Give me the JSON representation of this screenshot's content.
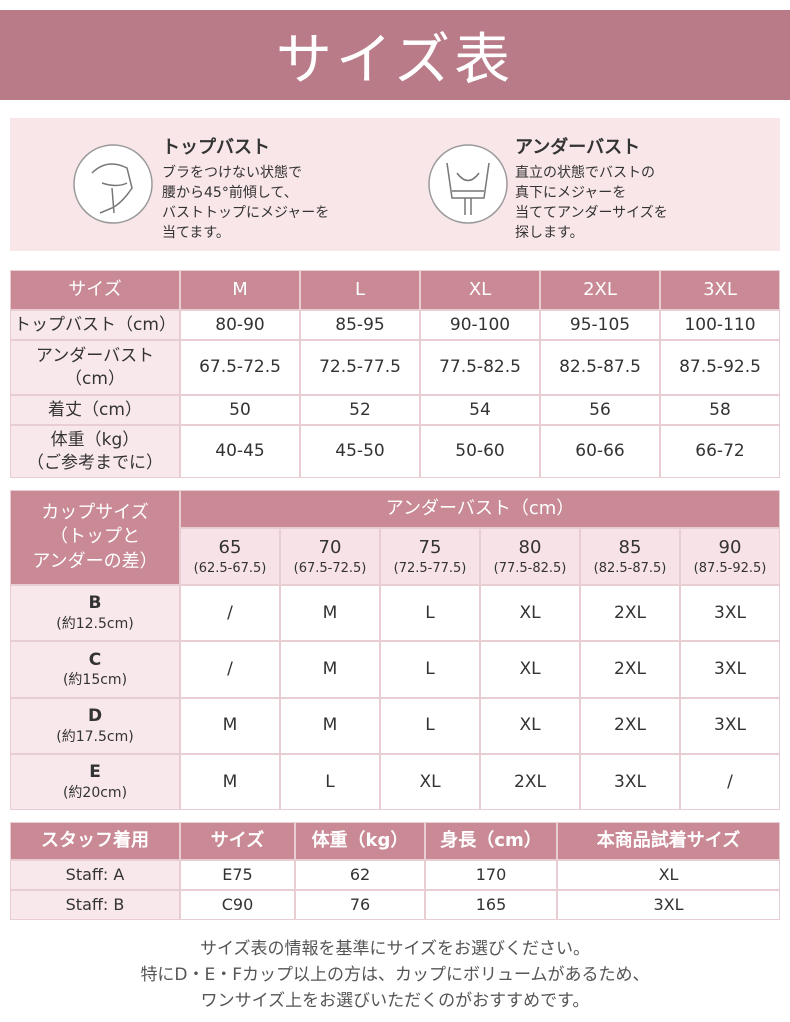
{
  "header": {
    "title": "サイズ表"
  },
  "guide": [
    {
      "title": "トップバスト",
      "lines": [
        "ブラをつけない状態で",
        "腰から45°前傾して、",
        "バストトップにメジャーを",
        "当てます。"
      ]
    },
    {
      "title": "アンダーバスト",
      "lines": [
        "直立の状態でバストの",
        "真下にメジャーを",
        "当ててアンダーサイズを",
        "探します。"
      ]
    }
  ],
  "size_table": {
    "header": [
      "サイズ",
      "M",
      "L",
      "XL",
      "2XL",
      "3XL"
    ],
    "rows": [
      {
        "label": [
          "トップバスト（cm）"
        ],
        "values": [
          "80-90",
          "85-95",
          "90-100",
          "95-105",
          "100-110"
        ]
      },
      {
        "label": [
          "アンダーバスト",
          "（cm）"
        ],
        "values": [
          "67.5-72.5",
          "72.5-77.5",
          "77.5-82.5",
          "82.5-87.5",
          "87.5-92.5"
        ]
      },
      {
        "label": [
          "着丈（cm）"
        ],
        "values": [
          "50",
          "52",
          "54",
          "56",
          "58"
        ]
      },
      {
        "label": [
          "体重（kg）",
          "（ご参考までに）"
        ],
        "values": [
          "40-45",
          "45-50",
          "50-60",
          "60-66",
          "66-72"
        ]
      }
    ]
  },
  "cup_table": {
    "corner": [
      "カップサイズ",
      "（トップと",
      "アンダーの差）"
    ],
    "group": "アンダーバスト（cm）",
    "columns": [
      {
        "size": "65",
        "range": "(62.5-67.5)"
      },
      {
        "size": "70",
        "range": "(67.5-72.5)"
      },
      {
        "size": "75",
        "range": "(72.5-77.5)"
      },
      {
        "size": "80",
        "range": "(77.5-82.5)"
      },
      {
        "size": "85",
        "range": "(82.5-87.5)"
      },
      {
        "size": "90",
        "range": "(87.5-92.5)"
      }
    ],
    "rows": [
      {
        "cup": "B",
        "diff": "(約12.5cm)",
        "values": [
          "/",
          "M",
          "L",
          "XL",
          "2XL",
          "3XL"
        ]
      },
      {
        "cup": "C",
        "diff": "(約15cm)",
        "values": [
          "/",
          "M",
          "L",
          "XL",
          "2XL",
          "3XL"
        ]
      },
      {
        "cup": "D",
        "diff": "(約17.5cm)",
        "values": [
          "M",
          "M",
          "L",
          "XL",
          "2XL",
          "3XL"
        ]
      },
      {
        "cup": "E",
        "diff": "(約20cm)",
        "values": [
          "M",
          "L",
          "XL",
          "2XL",
          "3XL",
          "/"
        ]
      }
    ]
  },
  "staff_table": {
    "header": [
      "スタッフ着用",
      "サイズ",
      "体重（kg）",
      "身長（cm）",
      "本商品試着サイズ"
    ],
    "rows": [
      [
        "Staff: A",
        "E75",
        "62",
        "170",
        "XL"
      ],
      [
        "Staff: B",
        "C90",
        "76",
        "165",
        "3XL"
      ]
    ]
  },
  "notes": [
    "サイズ表の情報を基準にサイズをお選びください。",
    "特にD・E・Fカップ以上の方は、カップにボリュームがあるため、",
    "ワンサイズ上をお選びいただくのがおすすめです。"
  ]
}
